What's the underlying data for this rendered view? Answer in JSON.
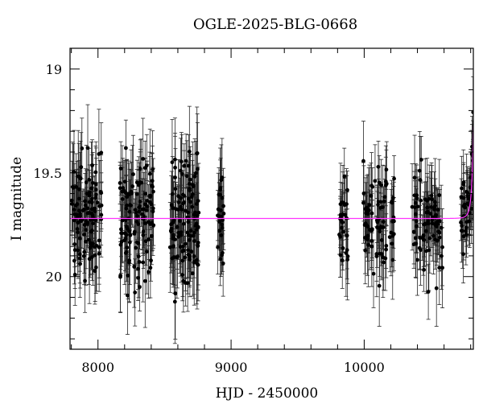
{
  "chart_data": {
    "type": "scatter",
    "title": "OGLE-2025-BLG-0668",
    "xlabel": "HJD - 2450000",
    "ylabel": "I magnitude",
    "xlim": [
      7790,
      10820
    ],
    "ylim": [
      20.35,
      19.0
    ],
    "y_inverted": true,
    "xticks": [
      8000,
      9000,
      10000
    ],
    "yticks": [
      19,
      19.5,
      20
    ],
    "x_minor_step": 200,
    "y_minor_step": 0.1,
    "grid": false,
    "colors": {
      "data": "#000000",
      "errorbar": "#000000",
      "model": "#ff33ff",
      "frame": "#000000"
    },
    "series": [
      {
        "kind": "observations",
        "seasons": [
          {
            "x_range": [
              7800,
              8030
            ],
            "mean_mag": 19.72,
            "scatter_mag": 0.14,
            "mean_error": 0.16,
            "n_points": 110
          },
          {
            "x_range": [
              8165,
              8420
            ],
            "mean_mag": 19.72,
            "scatter_mag": 0.14,
            "mean_error": 0.16,
            "n_points": 120
          },
          {
            "x_range": [
              8540,
              8760
            ],
            "mean_mag": 19.72,
            "scatter_mag": 0.15,
            "mean_error": 0.17,
            "n_points": 120
          },
          {
            "x_range": [
              8895,
              8945
            ],
            "mean_mag": 19.72,
            "scatter_mag": 0.12,
            "mean_error": 0.15,
            "n_points": 25
          },
          {
            "x_range": [
              9810,
              9880
            ],
            "mean_mag": 19.72,
            "scatter_mag": 0.13,
            "mean_error": 0.15,
            "n_points": 30
          },
          {
            "x_range": [
              9990,
              10230
            ],
            "mean_mag": 19.72,
            "scatter_mag": 0.13,
            "mean_error": 0.15,
            "n_points": 80
          },
          {
            "x_range": [
              10360,
              10590
            ],
            "mean_mag": 19.71,
            "scatter_mag": 0.13,
            "mean_error": 0.15,
            "n_points": 80
          },
          {
            "x_range": [
              10720,
              10820
            ],
            "mean_mag": 19.55,
            "scatter_mag": 0.1,
            "mean_error": 0.13,
            "n_points": 50
          }
        ],
        "rise": {
          "x_start": 10750,
          "x_end": 10820,
          "mag_start": 19.62,
          "mag_end": 19.0
        }
      },
      {
        "kind": "model",
        "baseline_mag": 19.72,
        "peak_x": 10838,
        "t_E": 22,
        "u0": 0.08
      }
    ]
  }
}
